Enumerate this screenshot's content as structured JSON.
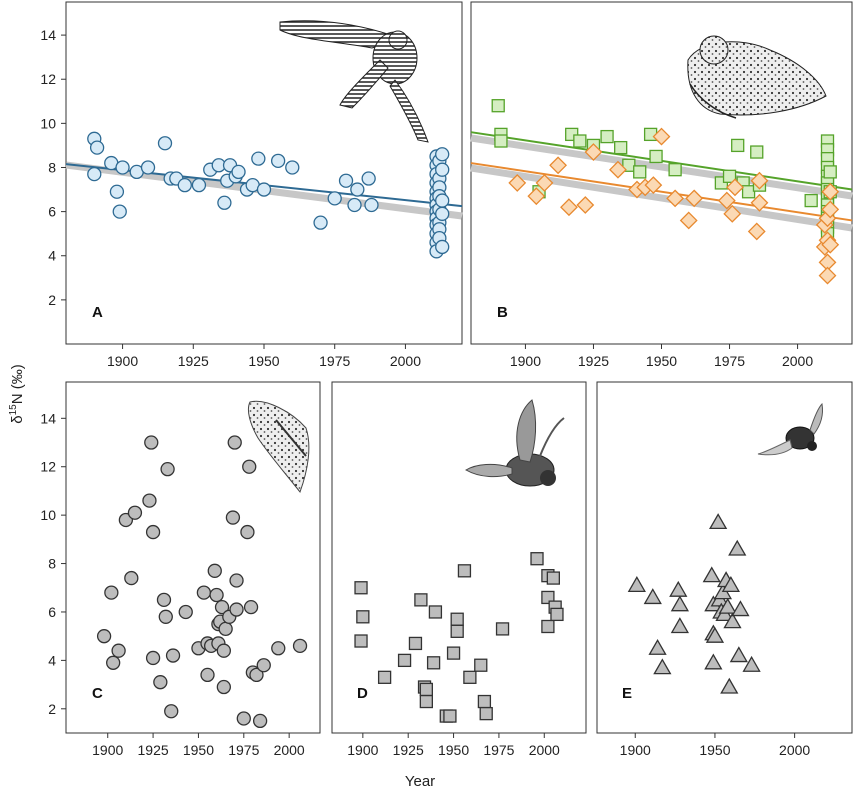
{
  "figure": {
    "xlabel": "Year",
    "ylabel": "δ15N (‰)",
    "ylabel_main": "δ",
    "ylabel_sup": "15",
    "ylabel_tail": "N (‰)"
  },
  "colors": {
    "blue": "#2e6a93",
    "blue_fill": "#d7eaf7",
    "green": "#55a32a",
    "green_fill": "#d5eec2",
    "orange": "#e8892f",
    "orange_fill": "#fbd9b4",
    "grey_fill": "#bdbdbd",
    "grey_edge": "#333333",
    "ci_band": "#c7c7c7"
  },
  "chart_data": [
    {
      "panel": "A",
      "type": "scatter",
      "marker": "circle",
      "illustration": "nightjar-in-flight",
      "xlim": [
        1880,
        2020
      ],
      "ylim": [
        0,
        15.5
      ],
      "xticks": [
        "1900",
        "1925",
        "1950",
        "1975",
        "2000"
      ],
      "yticks": [
        "2",
        "4",
        "6",
        "8",
        "10",
        "12",
        "14"
      ],
      "fit": {
        "x": [
          1880,
          2020
        ],
        "y": [
          8.15,
          6.25
        ]
      },
      "series": [
        {
          "name": "A",
          "color": "blue",
          "points": [
            [
              1890,
              9.3
            ],
            [
              1891,
              8.9
            ],
            [
              1890,
              7.7
            ],
            [
              1896,
              8.2
            ],
            [
              1898,
              6.9
            ],
            [
              1899,
              6.0
            ],
            [
              1900,
              8.0
            ],
            [
              1905,
              7.8
            ],
            [
              1909,
              8.0
            ],
            [
              1915,
              9.1
            ],
            [
              1917,
              7.5
            ],
            [
              1919,
              7.5
            ],
            [
              1922,
              7.2
            ],
            [
              1927,
              7.2
            ],
            [
              1931,
              7.9
            ],
            [
              1934,
              8.1
            ],
            [
              1936,
              6.4
            ],
            [
              1937,
              7.4
            ],
            [
              1938,
              8.1
            ],
            [
              1940,
              7.6
            ],
            [
              1941,
              7.8
            ],
            [
              1944,
              7.0
            ],
            [
              1946,
              7.2
            ],
            [
              1948,
              8.4
            ],
            [
              1950,
              7.0
            ],
            [
              1955,
              8.3
            ],
            [
              1960,
              8.0
            ],
            [
              1970,
              5.5
            ],
            [
              1975,
              6.6
            ],
            [
              1979,
              7.4
            ],
            [
              1982,
              6.3
            ],
            [
              1983,
              7.0
            ],
            [
              1987,
              7.5
            ],
            [
              1988,
              6.3
            ],
            [
              2011,
              8.5
            ],
            [
              2011,
              8.1
            ],
            [
              2011,
              7.7
            ],
            [
              2011,
              7.3
            ],
            [
              2011,
              6.9
            ],
            [
              2011,
              6.6
            ],
            [
              2011,
              6.3
            ],
            [
              2011,
              6.0
            ],
            [
              2011,
              5.7
            ],
            [
              2011,
              5.4
            ],
            [
              2011,
              5.0
            ],
            [
              2011,
              4.6
            ],
            [
              2011,
              4.2
            ],
            [
              2012,
              8.3
            ],
            [
              2012,
              7.5
            ],
            [
              2012,
              7.1
            ],
            [
              2012,
              6.7
            ],
            [
              2012,
              6.1
            ],
            [
              2012,
              5.5
            ],
            [
              2012,
              5.2
            ],
            [
              2012,
              4.8
            ],
            [
              2013,
              8.6
            ],
            [
              2013,
              7.9
            ],
            [
              2013,
              6.5
            ],
            [
              2013,
              5.9
            ],
            [
              2013,
              4.4
            ]
          ]
        }
      ]
    },
    {
      "panel": "B",
      "type": "scatter",
      "marker": "square+diamond",
      "illustration": "nightjar-resting",
      "xlim": [
        1880,
        2020
      ],
      "ylim": [
        0,
        15.5
      ],
      "xticks": [
        "1900",
        "1925",
        "1950",
        "1975",
        "2000"
      ],
      "yticks": [],
      "fits": [
        {
          "series": "green",
          "x": [
            1880,
            2020
          ],
          "y": [
            9.6,
            7.0
          ]
        },
        {
          "series": "orange",
          "x": [
            1880,
            2020
          ],
          "y": [
            8.2,
            5.6
          ]
        }
      ],
      "series": [
        {
          "name": "green squares",
          "color": "green",
          "marker": "square",
          "points": [
            [
              1890,
              10.8
            ],
            [
              1891,
              9.5
            ],
            [
              1891,
              9.2
            ],
            [
              1905,
              6.9
            ],
            [
              1917,
              9.5
            ],
            [
              1920,
              9.2
            ],
            [
              1925,
              9.0
            ],
            [
              1930,
              9.4
            ],
            [
              1935,
              8.9
            ],
            [
              1938,
              8.1
            ],
            [
              1942,
              7.8
            ],
            [
              1946,
              9.5
            ],
            [
              1948,
              8.5
            ],
            [
              1955,
              7.9
            ],
            [
              1972,
              7.3
            ],
            [
              1975,
              7.6
            ],
            [
              1978,
              9.0
            ],
            [
              1980,
              7.3
            ],
            [
              1982,
              6.9
            ],
            [
              1985,
              8.7
            ],
            [
              1986,
              7.2
            ],
            [
              2005,
              6.5
            ],
            [
              2011,
              9.2
            ],
            [
              2011,
              8.8
            ],
            [
              2011,
              8.4
            ],
            [
              2011,
              8.0
            ],
            [
              2011,
              7.6
            ],
            [
              2011,
              7.3
            ],
            [
              2011,
              7.0
            ],
            [
              2011,
              6.6
            ],
            [
              2011,
              6.3
            ],
            [
              2011,
              6.0
            ],
            [
              2011,
              5.7
            ],
            [
              2011,
              5.3
            ],
            [
              2011,
              5.0
            ],
            [
              2012,
              7.8
            ],
            [
              2012,
              6.9
            ]
          ]
        },
        {
          "name": "orange diamonds",
          "color": "orange",
          "marker": "diamond",
          "points": [
            [
              1897,
              7.3
            ],
            [
              1904,
              6.7
            ],
            [
              1907,
              7.3
            ],
            [
              1912,
              8.1
            ],
            [
              1916,
              6.2
            ],
            [
              1922,
              6.3
            ],
            [
              1925,
              8.7
            ],
            [
              1934,
              7.9
            ],
            [
              1941,
              7.0
            ],
            [
              1944,
              7.1
            ],
            [
              1947,
              7.2
            ],
            [
              1950,
              9.4
            ],
            [
              1955,
              6.6
            ],
            [
              1960,
              5.6
            ],
            [
              1962,
              6.6
            ],
            [
              1974,
              6.5
            ],
            [
              1976,
              5.9
            ],
            [
              1977,
              7.1
            ],
            [
              1985,
              5.1
            ],
            [
              1986,
              6.4
            ],
            [
              1986,
              7.4
            ],
            [
              2010,
              5.4
            ],
            [
              2010,
              4.4
            ],
            [
              2011,
              3.7
            ],
            [
              2011,
              3.1
            ],
            [
              2011,
              4.7
            ],
            [
              2011,
              5.7
            ],
            [
              2012,
              4.5
            ],
            [
              2012,
              6.1
            ],
            [
              2012,
              6.9
            ]
          ]
        }
      ]
    },
    {
      "panel": "C",
      "type": "scatter",
      "marker": "circle",
      "illustration": "moth",
      "xlim": [
        1877,
        2017
      ],
      "ylim": [
        1,
        15.5
      ],
      "xticks": [
        "1900",
        "1925",
        "1950",
        "1975",
        "2000"
      ],
      "yticks": [
        "2",
        "4",
        "6",
        "8",
        "10",
        "12",
        "14"
      ],
      "series": [
        {
          "name": "C",
          "color": "grey",
          "points": [
            [
              1898,
              5.0
            ],
            [
              1902,
              6.8
            ],
            [
              1903,
              3.9
            ],
            [
              1906,
              4.4
            ],
            [
              1910,
              9.8
            ],
            [
              1913,
              7.4
            ],
            [
              1915,
              10.1
            ],
            [
              1923,
              10.6
            ],
            [
              1924,
              13.0
            ],
            [
              1925,
              9.3
            ],
            [
              1925,
              4.1
            ],
            [
              1929,
              3.1
            ],
            [
              1931,
              6.5
            ],
            [
              1932,
              5.8
            ],
            [
              1933,
              11.9
            ],
            [
              1935,
              1.9
            ],
            [
              1936,
              4.2
            ],
            [
              1943,
              6.0
            ],
            [
              1950,
              4.5
            ],
            [
              1953,
              6.8
            ],
            [
              1955,
              4.7
            ],
            [
              1955,
              3.4
            ],
            [
              1957,
              4.6
            ],
            [
              1959,
              7.7
            ],
            [
              1960,
              6.7
            ],
            [
              1961,
              5.5
            ],
            [
              1961,
              4.7
            ],
            [
              1962,
              5.6
            ],
            [
              1963,
              6.2
            ],
            [
              1964,
              4.4
            ],
            [
              1964,
              2.9
            ],
            [
              1965,
              5.3
            ],
            [
              1967,
              5.8
            ],
            [
              1969,
              9.9
            ],
            [
              1970,
              13.0
            ],
            [
              1971,
              7.3
            ],
            [
              1971,
              6.1
            ],
            [
              1975,
              1.6
            ],
            [
              1977,
              9.3
            ],
            [
              1978,
              12.0
            ],
            [
              1979,
              6.2
            ],
            [
              1980,
              3.5
            ],
            [
              1982,
              3.4
            ],
            [
              1984,
              1.5
            ],
            [
              1986,
              3.8
            ],
            [
              1994,
              4.5
            ],
            [
              2006,
              4.6
            ]
          ]
        }
      ]
    },
    {
      "panel": "D",
      "type": "scatter",
      "marker": "square",
      "illustration": "beetle-large",
      "xlim": [
        1883,
        2023
      ],
      "ylim": [
        1,
        15.5
      ],
      "xticks": [
        "1900",
        "1925",
        "1950",
        "1975",
        "2000"
      ],
      "yticks": [],
      "series": [
        {
          "name": "D",
          "color": "grey",
          "points": [
            [
              1899,
              7.0
            ],
            [
              1900,
              5.8
            ],
            [
              1899,
              4.8
            ],
            [
              1912,
              3.3
            ],
            [
              1923,
              4.0
            ],
            [
              1929,
              4.7
            ],
            [
              1932,
              6.5
            ],
            [
              1934,
              2.9
            ],
            [
              1935,
              2.3
            ],
            [
              1935,
              2.8
            ],
            [
              1939,
              3.9
            ],
            [
              1940,
              6.0
            ],
            [
              1946,
              1.7
            ],
            [
              1948,
              1.7
            ],
            [
              1950,
              4.3
            ],
            [
              1952,
              5.7
            ],
            [
              1952,
              5.2
            ],
            [
              1956,
              7.7
            ],
            [
              1959,
              3.3
            ],
            [
              1965,
              3.8
            ],
            [
              1967,
              2.3
            ],
            [
              1968,
              1.8
            ],
            [
              1977,
              5.3
            ],
            [
              1996,
              8.2
            ],
            [
              2002,
              7.5
            ],
            [
              2002,
              6.6
            ],
            [
              2002,
              5.4
            ],
            [
              2005,
              7.4
            ],
            [
              2006,
              6.2
            ],
            [
              2007,
              5.9
            ]
          ]
        }
      ]
    },
    {
      "panel": "E",
      "type": "scatter",
      "marker": "triangle",
      "illustration": "beetle-small",
      "xlim": [
        1876,
        2036
      ],
      "ylim": [
        1,
        15.5
      ],
      "xticks": [
        "1900",
        "1950",
        "2000"
      ],
      "yticks": [],
      "series": [
        {
          "name": "E",
          "color": "grey",
          "points": [
            [
              1901,
              7.1
            ],
            [
              1911,
              6.6
            ],
            [
              1914,
              4.5
            ],
            [
              1917,
              3.7
            ],
            [
              1927,
              6.9
            ],
            [
              1928,
              6.3
            ],
            [
              1928,
              5.4
            ],
            [
              1948,
              7.5
            ],
            [
              1949,
              6.3
            ],
            [
              1949,
              5.1
            ],
            [
              1949,
              3.9
            ],
            [
              1950,
              5.0
            ],
            [
              1952,
              9.7
            ],
            [
              1953,
              6.5
            ],
            [
              1954,
              6.0
            ],
            [
              1955,
              6.8
            ],
            [
              1956,
              5.9
            ],
            [
              1957,
              7.3
            ],
            [
              1958,
              6.2
            ],
            [
              1959,
              2.9
            ],
            [
              1960,
              7.1
            ],
            [
              1961,
              5.6
            ],
            [
              1964,
              8.6
            ],
            [
              1965,
              4.2
            ],
            [
              1966,
              6.1
            ],
            [
              1973,
              3.8
            ]
          ]
        }
      ]
    }
  ]
}
